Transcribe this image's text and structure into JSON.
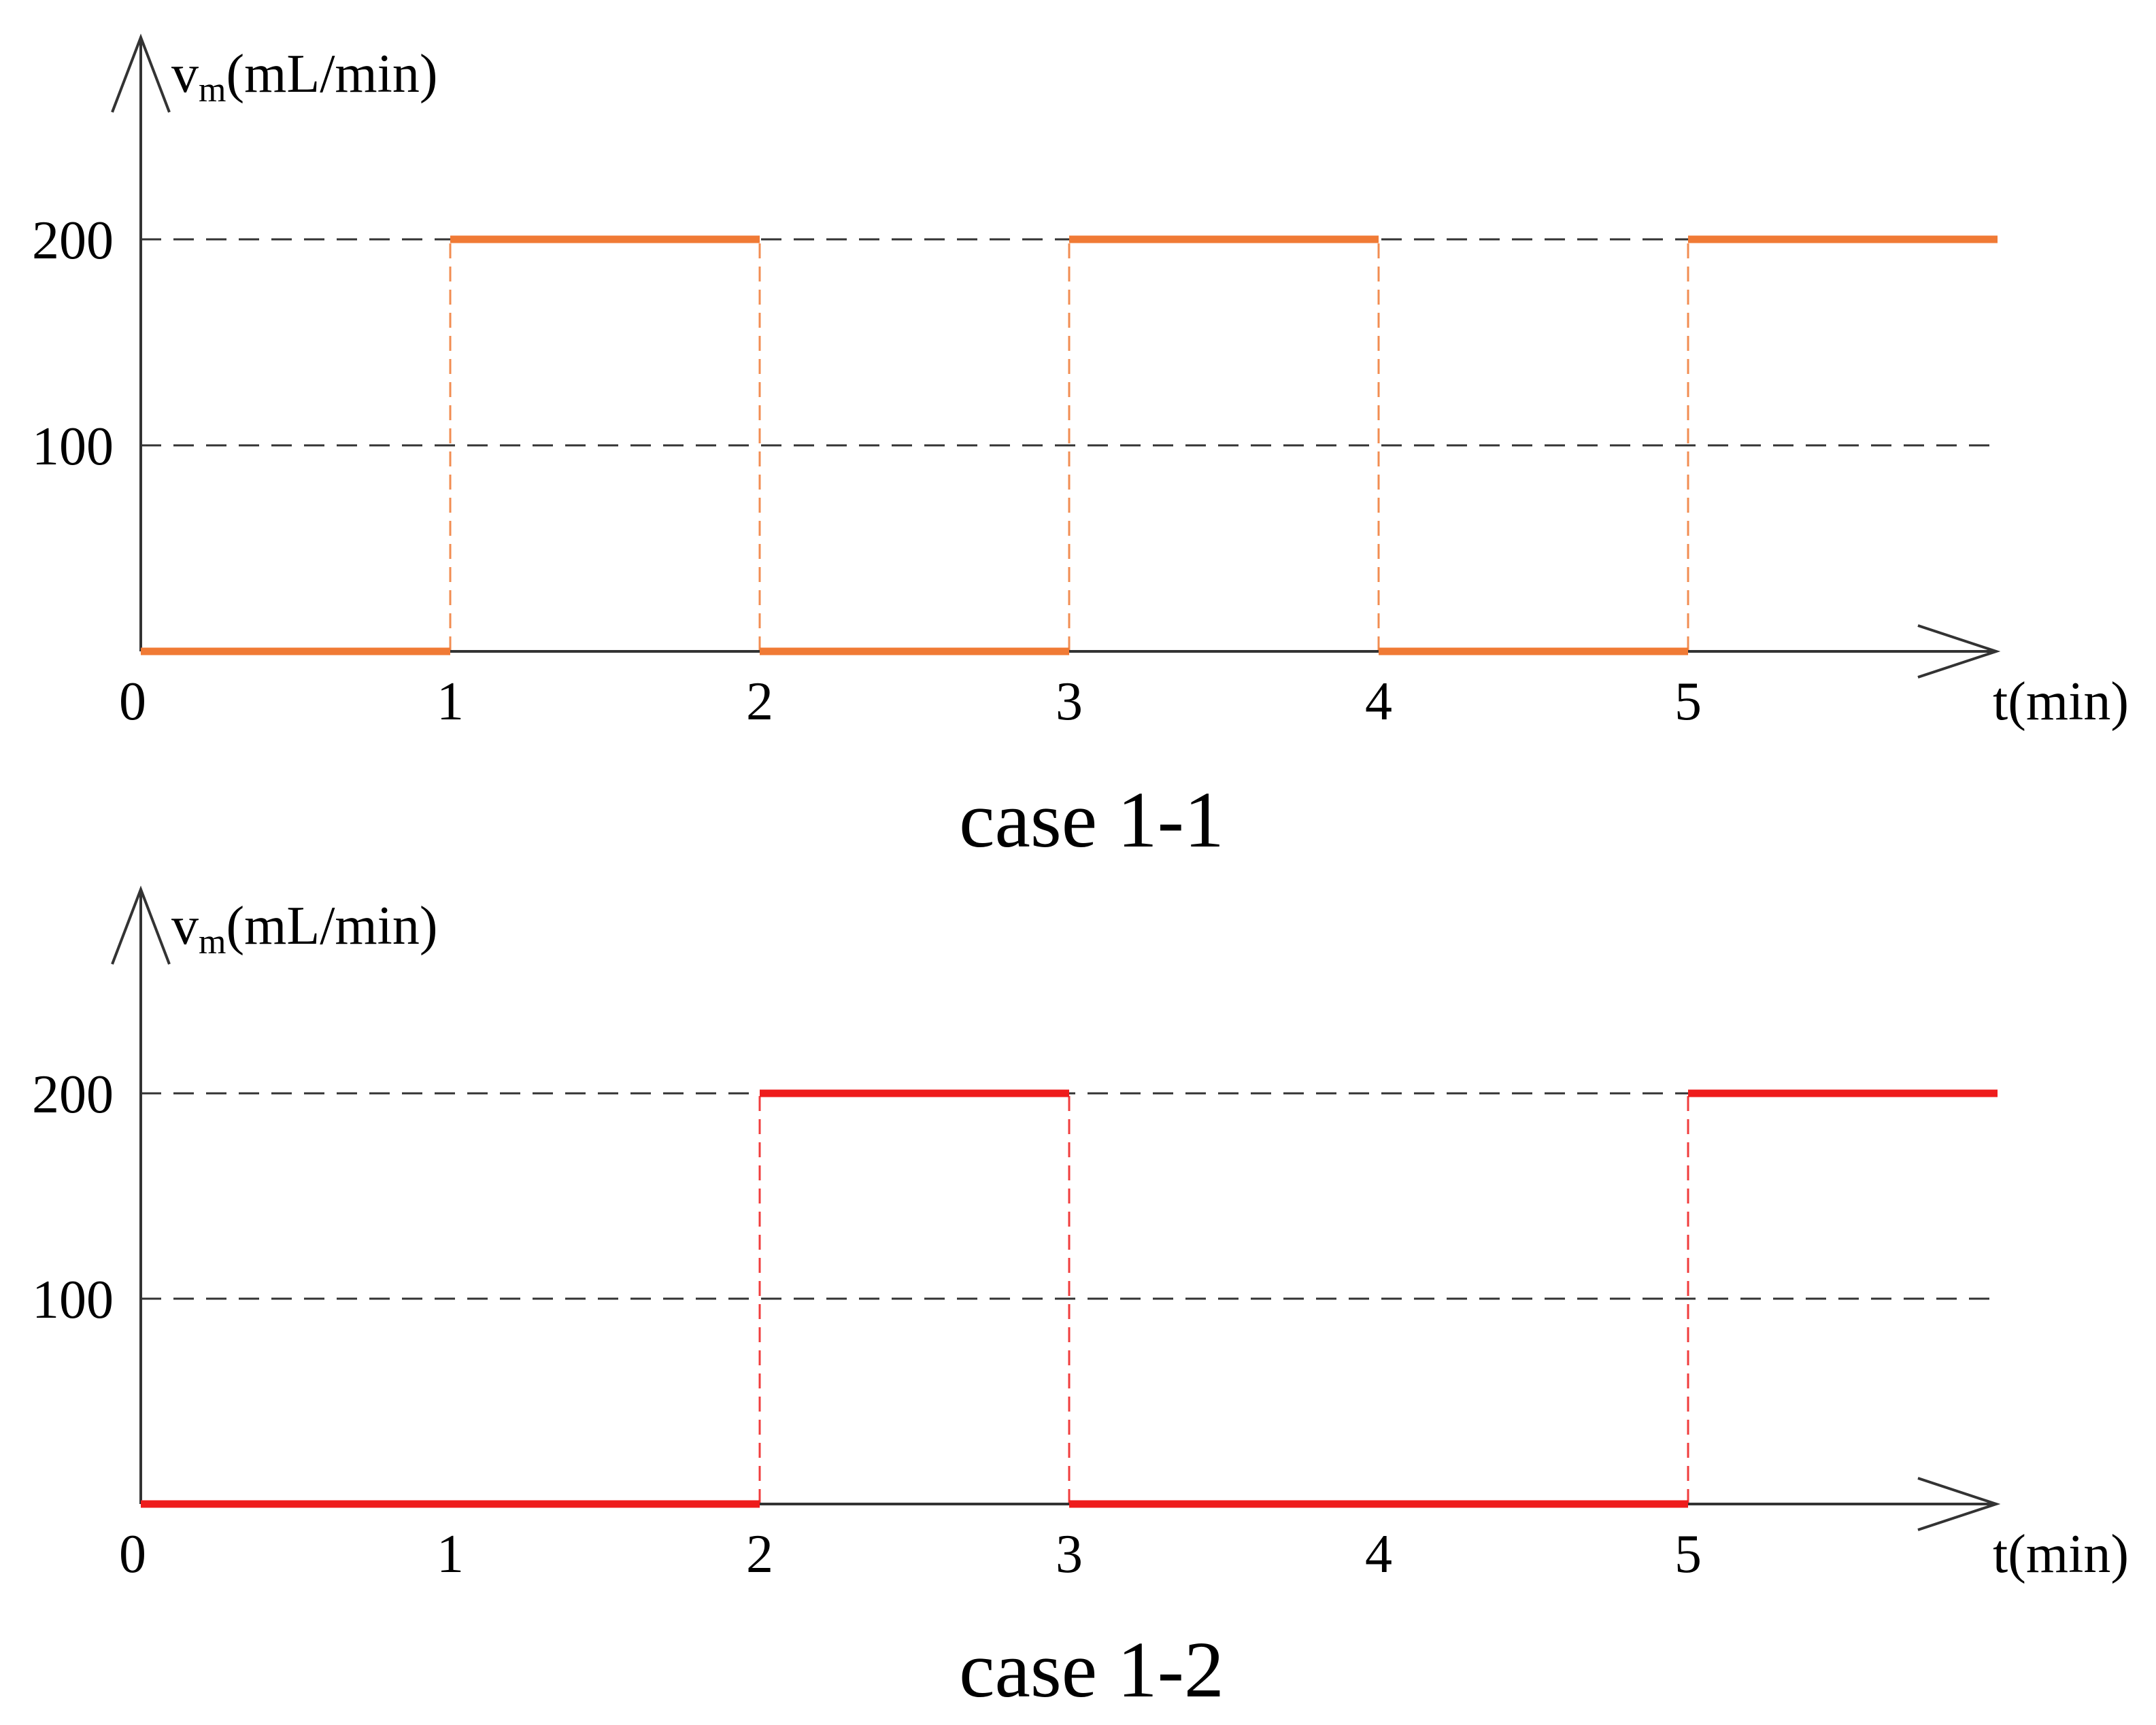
{
  "chart_data": [
    {
      "type": "line",
      "step": true,
      "title": "case 1-1",
      "ylabel": "v",
      "ylabel_sub": "m",
      "ylabel_unit": "(mL/min)",
      "xlabel": "t(min)",
      "xlim": [
        0,
        6
      ],
      "ylim": [
        0,
        200
      ],
      "x_ticks": [
        "0",
        "1",
        "2",
        "3",
        "4",
        "5"
      ],
      "y_ticks": [
        "100",
        "200"
      ],
      "grid_y": [
        100,
        200
      ],
      "color": "#F07A35",
      "series": [
        {
          "x": [
            0,
            1,
            1,
            2,
            2,
            3,
            3,
            4,
            4,
            5,
            5,
            6
          ],
          "y": [
            0,
            0,
            200,
            200,
            0,
            0,
            200,
            200,
            0,
            0,
            200,
            200
          ]
        }
      ]
    },
    {
      "type": "line",
      "step": true,
      "title": "case 1-2",
      "ylabel": "v",
      "ylabel_sub": "m",
      "ylabel_unit": "(mL/min)",
      "xlabel": "t(min)",
      "xlim": [
        0,
        6
      ],
      "ylim": [
        0,
        200
      ],
      "x_ticks": [
        "0",
        "1",
        "2",
        "3",
        "4",
        "5"
      ],
      "y_ticks": [
        "100",
        "200"
      ],
      "grid_y": [
        100,
        200
      ],
      "color": "#EE1C1C",
      "series": [
        {
          "x": [
            0,
            2,
            2,
            3,
            3,
            5,
            5,
            6
          ],
          "y": [
            0,
            0,
            200,
            200,
            0,
            0,
            200,
            200
          ]
        }
      ]
    }
  ]
}
